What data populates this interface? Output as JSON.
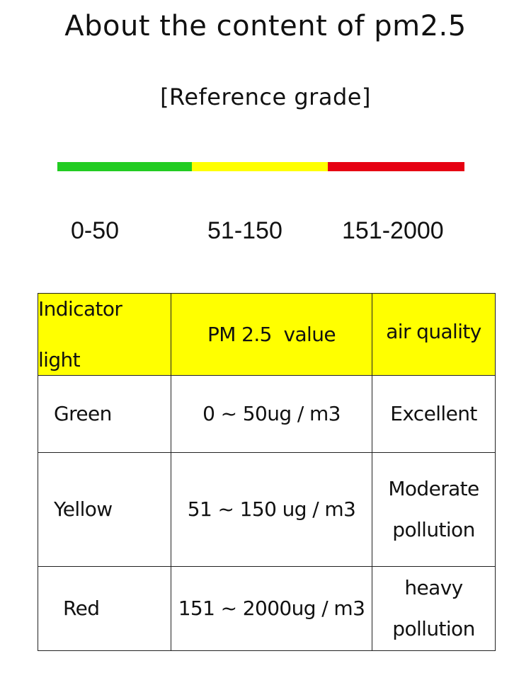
{
  "page": {
    "title": "About the content of pm2.5",
    "subtitle": "[Reference grade]"
  },
  "scale": {
    "colors": {
      "green": "#22cc22",
      "yellow": "#ffff00",
      "red": "#e60012"
    },
    "ranges": [
      "0-50",
      "51-150",
      "151-2000"
    ]
  },
  "table": {
    "header_bg": "#ffff00",
    "header": {
      "indicator_line1": "Indicator",
      "indicator_line2": "light",
      "value": "PM 2.5  value",
      "quality": "air quality"
    },
    "rows": [
      {
        "light": "Green",
        "value": "0 ~ 50ug / m3",
        "quality_line1": "Excellent",
        "quality_line2": ""
      },
      {
        "light": "Yellow",
        "value": "51 ~ 150 ug / m3",
        "quality_line1": "Moderate",
        "quality_line2": "pollution"
      },
      {
        "light": "Red",
        "value": "151 ~ 2000ug / m3",
        "quality_line1": "heavy",
        "quality_line2": "pollution"
      }
    ]
  }
}
